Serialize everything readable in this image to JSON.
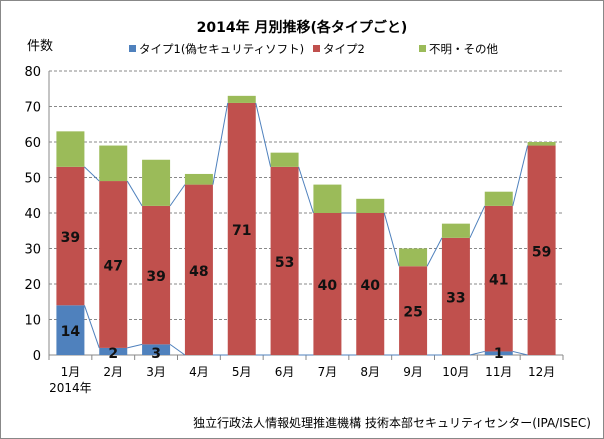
{
  "chart_data": {
    "type": "bar",
    "stacked": true,
    "title": "2014年  月別推移(各タイプごと)",
    "ylabel": "件数",
    "ylim": [
      0,
      80
    ],
    "yticks": [
      0,
      10,
      20,
      30,
      40,
      50,
      60,
      70,
      80
    ],
    "categories": [
      "1月",
      "2月",
      "3月",
      "4月",
      "5月",
      "6月",
      "7月",
      "8月",
      "9月",
      "10月",
      "11月",
      "12月"
    ],
    "x_sublabel": "2014年",
    "grid": true,
    "legend_position": "top",
    "series_lines": true,
    "series": [
      {
        "name": "タイプ1(偽セキュリティソフト)",
        "color": "#4F81BD",
        "values": [
          14,
          2,
          3,
          0,
          0,
          0,
          0,
          0,
          0,
          0,
          1,
          0
        ],
        "labels": [
          "14",
          "2",
          "3",
          "",
          "",
          "",
          "",
          "",
          "",
          "",
          "1",
          ""
        ]
      },
      {
        "name": "タイプ2",
        "color": "#C0504D",
        "values": [
          39,
          47,
          39,
          48,
          71,
          53,
          40,
          40,
          25,
          33,
          41,
          59
        ],
        "labels": [
          "39",
          "47",
          "39",
          "48",
          "71",
          "53",
          "40",
          "40",
          "25",
          "33",
          "41",
          "59"
        ]
      },
      {
        "name": "不明・その他",
        "color": "#9BBB59",
        "values": [
          10,
          10,
          13,
          3,
          2,
          4,
          8,
          4,
          5,
          4,
          4,
          1
        ]
      }
    ]
  },
  "footer": "独立行政法人情報処理推進機構 技術本部セキュリティセンター(IPA/ISEC)"
}
